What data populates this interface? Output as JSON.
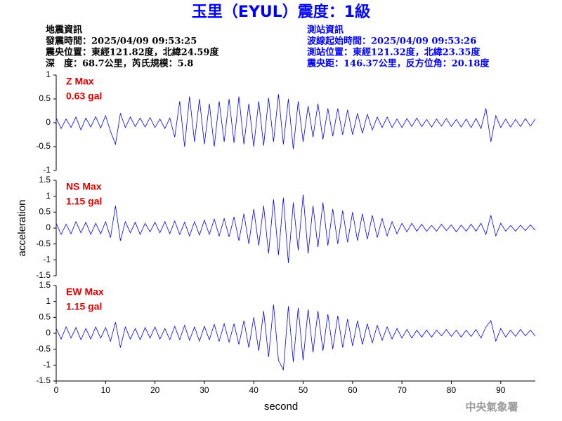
{
  "header": {
    "title": "玉里（EYUL）震度：1級",
    "left_info": [
      "地震資訊",
      "發震時間：2025/04/09 09:53:25",
      "震央位置：東經121.82度，北緯24.59度",
      "深　度：68.7公里，芮氏規模：5.8"
    ],
    "right_info": [
      "測站資訊",
      "波線起始時間：2025/04/09 09:53:26",
      "測站位置：東經121.32度，北緯23.35度",
      "震央距：146.37公里，反方位角：20.18度"
    ],
    "watermark": "中央氣象署"
  },
  "chart_data": [
    {
      "type": "line",
      "annotation": [
        "Z Max",
        "0.63 gal"
      ],
      "color": "#0000ff",
      "annotation_color": "#e00000",
      "x": [
        0,
        1,
        2,
        3,
        4,
        5,
        6,
        7,
        8,
        9,
        10,
        11,
        12,
        13,
        14,
        15,
        16,
        17,
        18,
        19,
        20,
        21,
        22,
        23,
        24,
        25,
        26,
        27,
        28,
        29,
        30,
        31,
        32,
        33,
        34,
        35,
        36,
        37,
        38,
        39,
        40,
        41,
        42,
        43,
        44,
        45,
        46,
        47,
        48,
        49,
        50,
        51,
        52,
        53,
        54,
        55,
        56,
        57,
        58,
        59,
        60,
        61,
        62,
        63,
        64,
        65,
        66,
        67,
        68,
        69,
        70,
        71,
        72,
        73,
        74,
        75,
        76,
        77,
        78,
        79,
        80,
        81,
        82,
        83,
        84,
        85,
        86,
        87,
        88,
        89,
        90,
        91,
        92,
        93,
        94,
        95,
        96,
        97
      ],
      "values": [
        0.1,
        -0.12,
        0.08,
        -0.1,
        0.12,
        -0.15,
        0.1,
        -0.09,
        0.13,
        -0.11,
        0.15,
        -0.18,
        -0.45,
        0.2,
        -0.1,
        0.12,
        -0.08,
        0.1,
        -0.09,
        0.11,
        -0.1,
        0.08,
        -0.12,
        0.1,
        -0.3,
        0.45,
        -0.5,
        0.55,
        -0.4,
        0.5,
        -0.45,
        0.4,
        -0.5,
        0.45,
        -0.4,
        0.5,
        -0.42,
        0.55,
        -0.45,
        0.4,
        -0.5,
        0.45,
        -0.48,
        0.52,
        -0.4,
        0.6,
        -0.45,
        0.5,
        -0.55,
        0.45,
        -0.4,
        0.35,
        -0.3,
        0.4,
        -0.35,
        0.3,
        -0.28,
        0.3,
        -0.25,
        0.27,
        -0.25,
        0.2,
        -0.22,
        0.18,
        -0.15,
        0.12,
        -0.1,
        0.12,
        -0.1,
        0.08,
        -0.1,
        0.09,
        -0.08,
        0.1,
        -0.08,
        0.07,
        -0.09,
        0.08,
        -0.07,
        0.09,
        -0.08,
        0.07,
        -0.09,
        0.08,
        -0.1,
        0.09,
        -0.12,
        0.3,
        -0.4,
        0.15,
        -0.1,
        0.08,
        -0.09,
        0.07,
        -0.08,
        0.09,
        -0.07,
        0.08
      ],
      "xlim": [
        0,
        97
      ],
      "ylim": [
        -1,
        1
      ],
      "yticks": [
        -1,
        -0.5,
        0,
        0.5,
        1
      ]
    },
    {
      "type": "line",
      "annotation": [
        "NS Max",
        "1.15 gal"
      ],
      "color": "#0000ff",
      "annotation_color": "#e00000",
      "ylabel": "acceleration",
      "x": [
        0,
        1,
        2,
        3,
        4,
        5,
        6,
        7,
        8,
        9,
        10,
        11,
        12,
        13,
        14,
        15,
        16,
        17,
        18,
        19,
        20,
        21,
        22,
        23,
        24,
        25,
        26,
        27,
        28,
        29,
        30,
        31,
        32,
        33,
        34,
        35,
        36,
        37,
        38,
        39,
        40,
        41,
        42,
        43,
        44,
        45,
        46,
        47,
        48,
        49,
        50,
        51,
        52,
        53,
        54,
        55,
        56,
        57,
        58,
        59,
        60,
        61,
        62,
        63,
        64,
        65,
        66,
        67,
        68,
        69,
        70,
        71,
        72,
        73,
        74,
        75,
        76,
        77,
        78,
        79,
        80,
        81,
        82,
        83,
        84,
        85,
        86,
        87,
        88,
        89,
        90,
        91,
        92,
        93,
        94,
        95,
        96,
        97
      ],
      "values": [
        0.15,
        -0.2,
        0.12,
        -0.18,
        0.2,
        -0.15,
        0.18,
        -0.2,
        0.15,
        -0.18,
        0.2,
        -0.3,
        0.7,
        -0.4,
        0.2,
        -0.15,
        0.18,
        -0.2,
        0.15,
        -0.12,
        0.18,
        -0.15,
        0.2,
        -0.18,
        0.22,
        -0.2,
        0.18,
        -0.25,
        0.2,
        -0.22,
        0.25,
        -0.2,
        0.28,
        -0.25,
        0.3,
        -0.28,
        0.35,
        -0.4,
        0.45,
        -0.5,
        0.6,
        -0.55,
        0.7,
        -0.8,
        0.9,
        -0.85,
        0.95,
        -1.1,
        0.8,
        -0.7,
        1.05,
        -0.8,
        0.7,
        -0.6,
        0.8,
        -0.55,
        0.6,
        -0.5,
        0.55,
        -0.45,
        0.5,
        -0.4,
        0.45,
        -0.35,
        0.4,
        -0.3,
        0.3,
        -0.25,
        0.2,
        -0.18,
        0.15,
        -0.12,
        0.15,
        -0.1,
        0.12,
        -0.1,
        0.08,
        -0.1,
        0.12,
        -0.08,
        0.1,
        -0.12,
        0.09,
        -0.1,
        0.12,
        -0.1,
        0.15,
        -0.2,
        0.4,
        -0.25,
        0.15,
        -0.1,
        0.08,
        -0.1,
        0.09,
        -0.08,
        0.1,
        -0.07
      ],
      "xlim": [
        0,
        97
      ],
      "ylim": [
        -1.5,
        1.5
      ],
      "yticks": [
        -1.5,
        -1,
        -0.5,
        0,
        0.5,
        1,
        1.5
      ]
    },
    {
      "type": "line",
      "annotation": [
        "EW Max",
        "1.15 gal"
      ],
      "color": "#0000ff",
      "annotation_color": "#e00000",
      "xlabel": "second",
      "x": [
        0,
        1,
        2,
        3,
        4,
        5,
        6,
        7,
        8,
        9,
        10,
        11,
        12,
        13,
        14,
        15,
        16,
        17,
        18,
        19,
        20,
        21,
        22,
        23,
        24,
        25,
        26,
        27,
        28,
        29,
        30,
        31,
        32,
        33,
        34,
        35,
        36,
        37,
        38,
        39,
        40,
        41,
        42,
        43,
        44,
        45,
        46,
        47,
        48,
        49,
        50,
        51,
        52,
        53,
        54,
        55,
        56,
        57,
        58,
        59,
        60,
        61,
        62,
        63,
        64,
        65,
        66,
        67,
        68,
        69,
        70,
        71,
        72,
        73,
        74,
        75,
        76,
        77,
        78,
        79,
        80,
        81,
        82,
        83,
        84,
        85,
        86,
        87,
        88,
        89,
        90,
        91,
        92,
        93,
        94,
        95,
        96,
        97
      ],
      "values": [
        0.15,
        -0.18,
        0.2,
        -0.15,
        0.18,
        -0.2,
        0.15,
        -0.18,
        0.2,
        -0.15,
        0.18,
        -0.25,
        0.35,
        -0.45,
        0.2,
        -0.18,
        0.15,
        -0.2,
        0.18,
        -0.15,
        0.2,
        -0.18,
        0.15,
        -0.2,
        0.22,
        -0.2,
        0.25,
        -0.22,
        0.2,
        -0.25,
        0.22,
        -0.2,
        0.28,
        -0.25,
        0.3,
        -0.28,
        0.3,
        -0.35,
        0.4,
        -0.45,
        0.5,
        -0.55,
        0.7,
        -0.75,
        0.9,
        -0.85,
        -1.15,
        0.85,
        -0.9,
        0.8,
        -0.85,
        0.75,
        -0.6,
        0.7,
        -0.55,
        0.6,
        -0.5,
        0.55,
        -0.45,
        0.45,
        -0.4,
        0.4,
        -0.35,
        0.3,
        -0.3,
        0.25,
        -0.22,
        0.2,
        -0.18,
        0.15,
        -0.15,
        0.12,
        -0.15,
        0.1,
        -0.12,
        0.1,
        -0.12,
        0.1,
        -0.08,
        0.12,
        -0.1,
        0.1,
        -0.12,
        0.1,
        -0.1,
        0.12,
        -0.15,
        0.2,
        0.4,
        -0.25,
        0.15,
        -0.12,
        0.1,
        -0.1,
        0.12,
        -0.08,
        0.1,
        -0.09
      ],
      "xlim": [
        0,
        97
      ],
      "ylim": [
        -1.5,
        1.5
      ],
      "yticks": [
        -1.5,
        -1,
        -0.5,
        0,
        0.5,
        1,
        1.5
      ],
      "xticks": [
        0,
        10,
        20,
        30,
        40,
        50,
        60,
        70,
        80,
        90
      ]
    }
  ]
}
